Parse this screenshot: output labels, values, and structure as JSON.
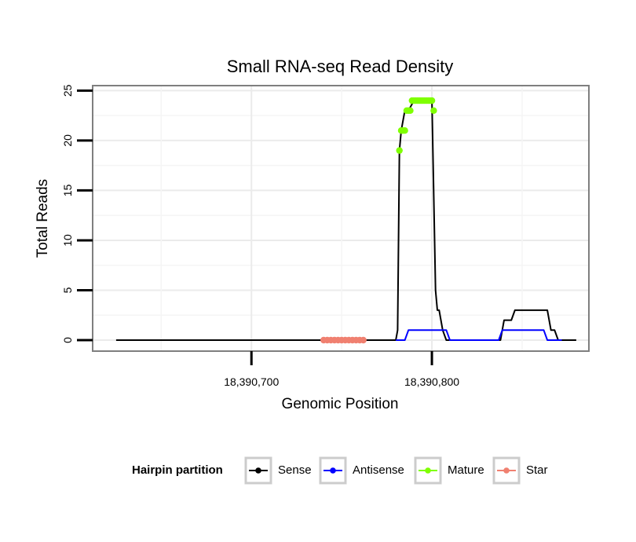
{
  "chart_data": {
    "type": "line",
    "title": "Small RNA-seq Read Density",
    "xlabel": "Genomic Position",
    "ylabel": "Total Reads",
    "xlim": [
      18390612,
      18390887
    ],
    "ylim": [
      -1.1,
      25.5
    ],
    "x_ticks": [
      18390700,
      18390800
    ],
    "x_tick_labels": [
      "18,390,700",
      "18,390,800"
    ],
    "y_ticks": [
      0,
      5,
      10,
      15,
      20,
      25
    ],
    "y_tick_labels": [
      "0",
      "5",
      "10",
      "15",
      "20",
      "25"
    ],
    "grid": true,
    "legend": {
      "title": "Hairpin partition",
      "position": "bottom",
      "entries": [
        {
          "name": "Sense",
          "color": "#000000"
        },
        {
          "name": "Antisense",
          "color": "#0000ff"
        },
        {
          "name": "Mature",
          "color": "#7fff00"
        },
        {
          "name": "Star",
          "color": "#f08070"
        }
      ]
    },
    "series": [
      {
        "name": "Sense",
        "color": "#000000",
        "style": "line",
        "x": [
          18390625,
          18390780,
          18390781,
          18390782,
          18390783,
          18390785,
          18390787,
          18390790,
          18390800,
          18390802,
          18390803,
          18390804,
          18390806,
          18390808,
          18390810,
          18390838,
          18390840,
          18390844,
          18390846,
          18390864,
          18390866,
          18390868,
          18390870,
          18390880
        ],
        "values": [
          0,
          0,
          1,
          19,
          21,
          23,
          23,
          24,
          24,
          5,
          3,
          3,
          1,
          0,
          0,
          0,
          2,
          2,
          3,
          3,
          1,
          1,
          0,
          0
        ]
      },
      {
        "name": "Antisense",
        "color": "#0000ff",
        "style": "line",
        "x": [
          18390780,
          18390785,
          18390787,
          18390808,
          18390810,
          18390837,
          18390839,
          18390862,
          18390864,
          18390872
        ],
        "values": [
          0,
          0,
          1,
          1,
          0,
          0,
          1,
          1,
          0,
          0
        ]
      },
      {
        "name": "Mature",
        "color": "#7fff00",
        "style": "points",
        "x": [
          18390782,
          18390783,
          18390784,
          18390785,
          18390786,
          18390787,
          18390788,
          18390789,
          18390790,
          18390791,
          18390792,
          18390793,
          18390794,
          18390795,
          18390796,
          18390797,
          18390798,
          18390799,
          18390800,
          18390801
        ],
        "values": [
          19,
          21,
          21,
          21,
          23,
          23,
          23,
          24,
          24,
          24,
          24,
          24,
          24,
          24,
          24,
          24,
          24,
          24,
          24,
          23
        ]
      },
      {
        "name": "Star",
        "color": "#f08070",
        "style": "points",
        "x": [
          18390740,
          18390742,
          18390744,
          18390746,
          18390748,
          18390750,
          18390752,
          18390754,
          18390756,
          18390758,
          18390760,
          18390762
        ],
        "values": [
          0,
          0,
          0,
          0,
          0,
          0,
          0,
          0,
          0,
          0,
          0,
          0
        ]
      }
    ]
  }
}
